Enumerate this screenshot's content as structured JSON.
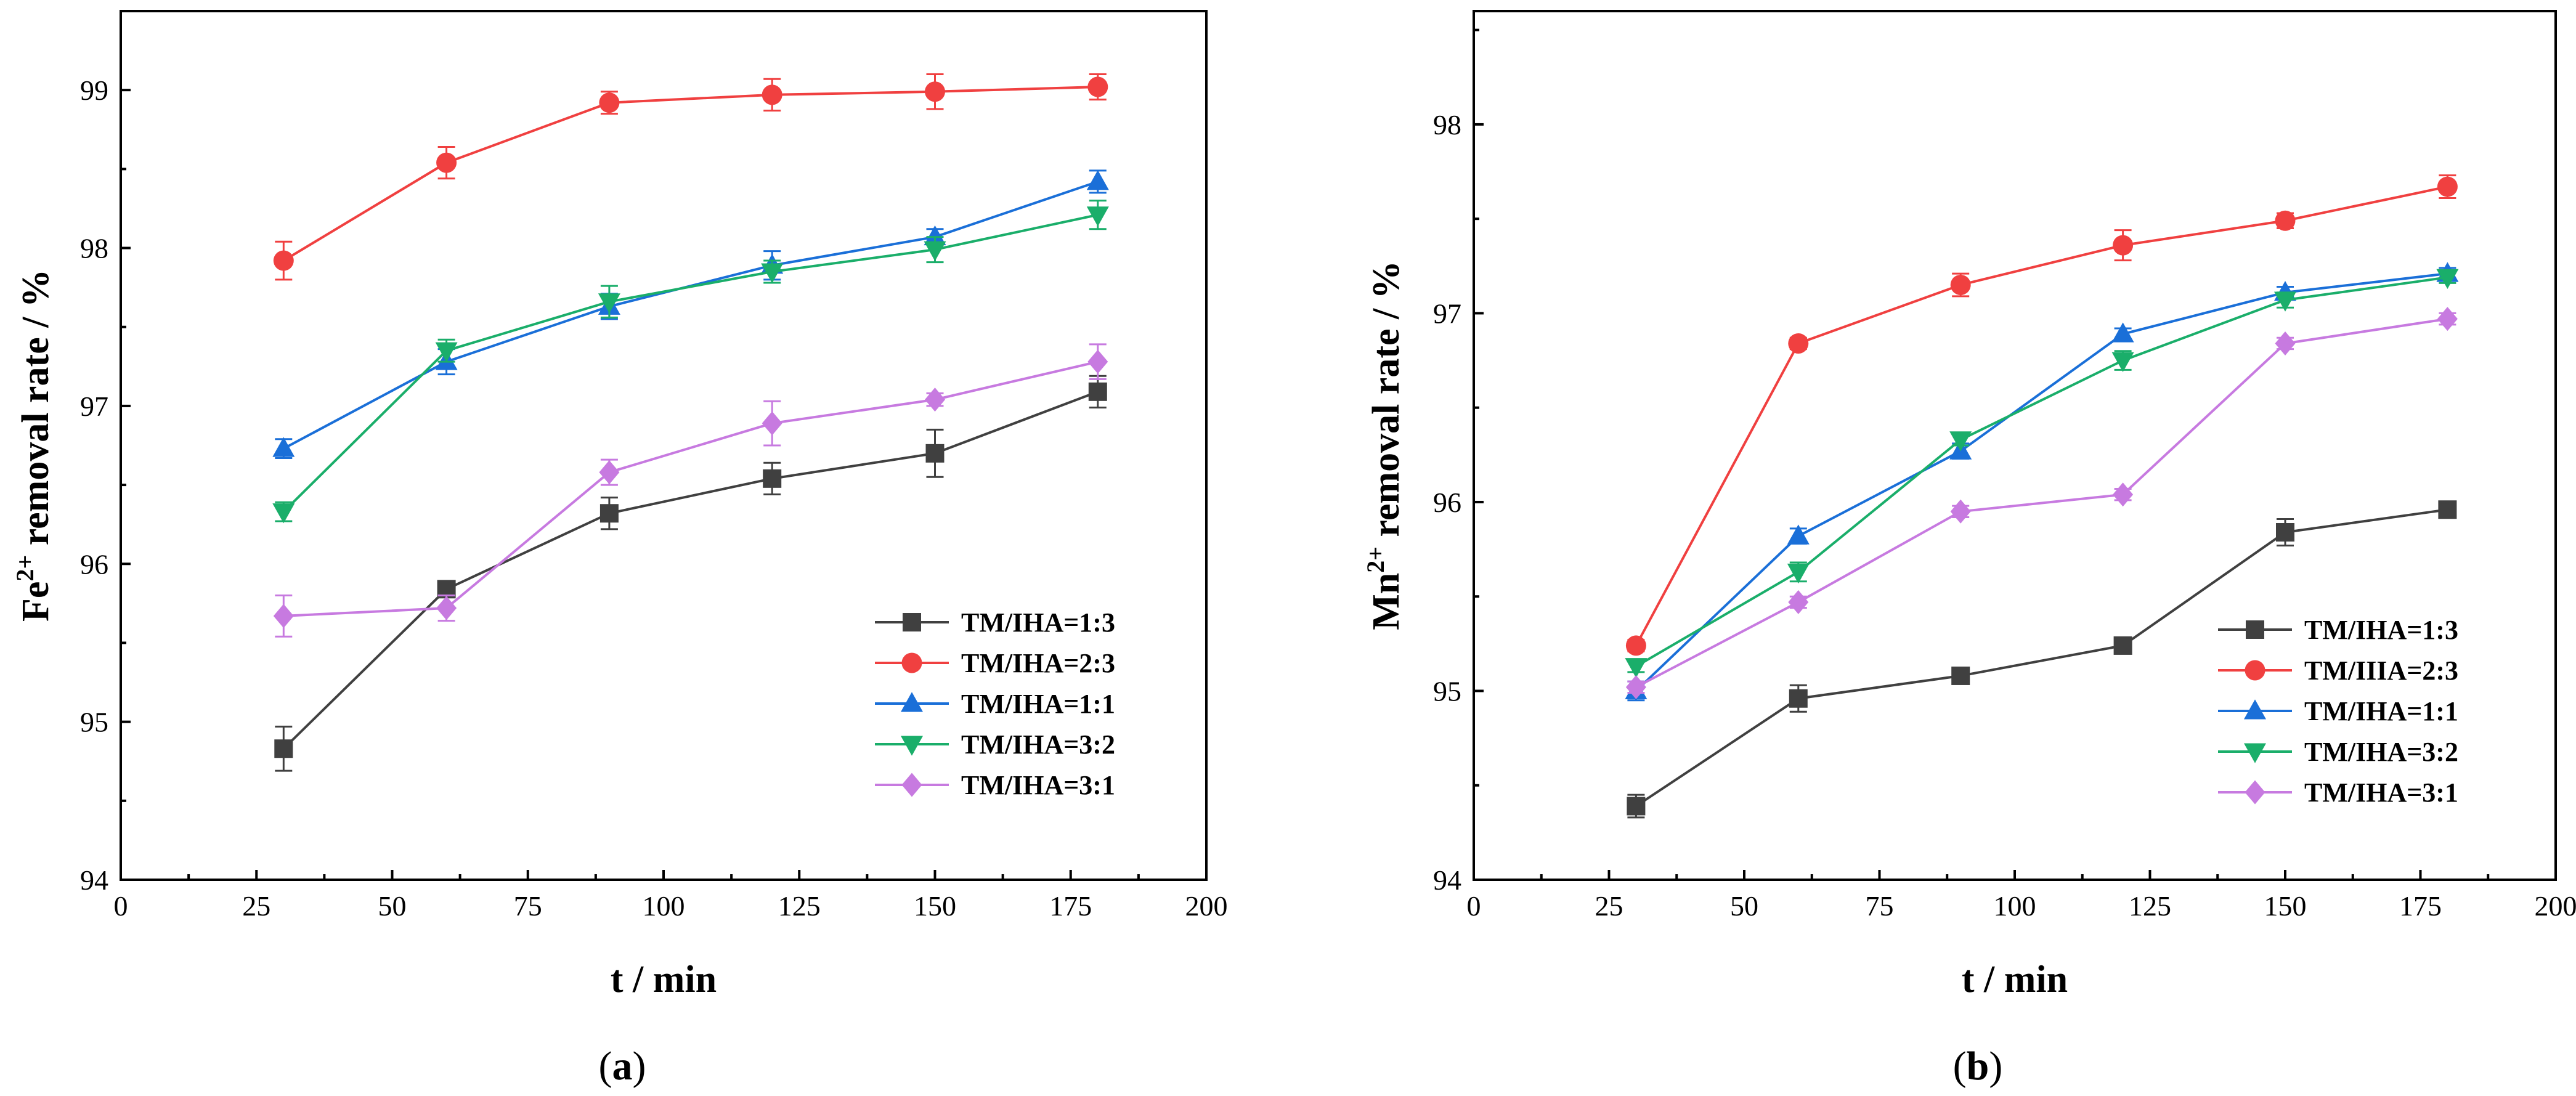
{
  "chart_data": [
    {
      "panel_label_pre": "(",
      "panel_label_letter": "a",
      "panel_label_post": ")",
      "type": "line",
      "xlabel": "t / min",
      "ylabel_base": "Fe",
      "ylabel_sup": "2+",
      "ylabel_rest": " removal rate / %",
      "xlim": [
        0,
        200
      ],
      "ylim": [
        94,
        99.5
      ],
      "xticks": [
        0,
        25,
        50,
        75,
        100,
        125,
        150,
        175,
        200
      ],
      "yticks": [
        94,
        95,
        96,
        97,
        98,
        99
      ],
      "grid": false,
      "legend_position": "lower-right",
      "x": [
        30,
        60,
        90,
        120,
        150,
        180
      ],
      "series": [
        {
          "name": "TM/IHA=1:3",
          "color": "#404040",
          "marker": "square",
          "values": [
            94.83,
            95.84,
            96.32,
            96.54,
            96.7,
            97.09
          ],
          "errors": [
            0.14,
            0.03,
            0.1,
            0.1,
            0.15,
            0.1
          ]
        },
        {
          "name": "TM/IHA=2:3",
          "color": "#f04040",
          "marker": "circle",
          "values": [
            97.92,
            98.54,
            98.92,
            98.97,
            98.99,
            99.02
          ],
          "errors": [
            0.12,
            0.1,
            0.07,
            0.1,
            0.11,
            0.08
          ]
        },
        {
          "name": "TM/IHA=1:1",
          "color": "#1a6fd8",
          "marker": "triangle-up",
          "values": [
            96.73,
            97.28,
            97.63,
            97.89,
            98.07,
            98.42
          ],
          "errors": [
            0.06,
            0.08,
            0.08,
            0.09,
            0.05,
            0.07
          ]
        },
        {
          "name": "TM/IHA=3:2",
          "color": "#1aae6a",
          "marker": "triangle-down",
          "values": [
            96.33,
            97.35,
            97.66,
            97.85,
            97.99,
            98.21
          ],
          "errors": [
            0.06,
            0.07,
            0.1,
            0.07,
            0.08,
            0.09
          ]
        },
        {
          "name": "TM/IHA=3:1",
          "color": "#c77ae0",
          "marker": "diamond",
          "values": [
            95.67,
            95.72,
            96.58,
            96.89,
            97.04,
            97.28
          ],
          "errors": [
            0.13,
            0.08,
            0.08,
            0.14,
            0.04,
            0.11
          ]
        }
      ]
    },
    {
      "panel_label_pre": "(",
      "panel_label_letter": "b",
      "panel_label_post": ")",
      "type": "line",
      "xlabel": "t / min",
      "ylabel_base": "Mn",
      "ylabel_sup": "2+",
      "ylabel_rest": " removal rate / %",
      "xlim": [
        0,
        200
      ],
      "ylim": [
        94,
        98.6
      ],
      "xticks": [
        0,
        25,
        50,
        75,
        100,
        125,
        150,
        175,
        200
      ],
      "yticks": [
        94,
        95,
        96,
        97,
        98
      ],
      "grid": false,
      "legend_position": "lower-right",
      "x": [
        30,
        60,
        90,
        120,
        150,
        180
      ],
      "series": [
        {
          "name": "TM/IHA=1:3",
          "color": "#404040",
          "marker": "square",
          "values": [
            94.39,
            94.96,
            95.08,
            95.24,
            95.84,
            95.96
          ],
          "errors": [
            0.06,
            0.07,
            0.03,
            0.04,
            0.07,
            0.03
          ]
        },
        {
          "name": "TM/IIIA=2:3",
          "color": "#f04040",
          "marker": "circle",
          "values": [
            95.24,
            96.84,
            97.15,
            97.36,
            97.49,
            97.67
          ],
          "errors": [
            0.03,
            0.03,
            0.06,
            0.08,
            0.04,
            0.06
          ]
        },
        {
          "name": "TM/IHA=1:1",
          "color": "#1a6fd8",
          "marker": "triangle-up",
          "values": [
            95.0,
            95.82,
            96.27,
            96.89,
            97.11,
            97.21
          ],
          "errors": [
            0.05,
            0.04,
            0.04,
            0.03,
            0.03,
            0.03
          ]
        },
        {
          "name": "TM/IHA=3:2",
          "color": "#1aae6a",
          "marker": "triangle-down",
          "values": [
            95.13,
            95.63,
            96.33,
            96.75,
            97.07,
            97.19
          ],
          "errors": [
            0.03,
            0.05,
            0.03,
            0.05,
            0.04,
            0.03
          ]
        },
        {
          "name": "TM/IHA=3:1",
          "color": "#c77ae0",
          "marker": "diamond",
          "values": [
            95.02,
            95.47,
            95.95,
            96.04,
            96.84,
            96.97
          ],
          "errors": [
            0.03,
            0.03,
            0.03,
            0.03,
            0.03,
            0.03
          ]
        }
      ]
    }
  ]
}
